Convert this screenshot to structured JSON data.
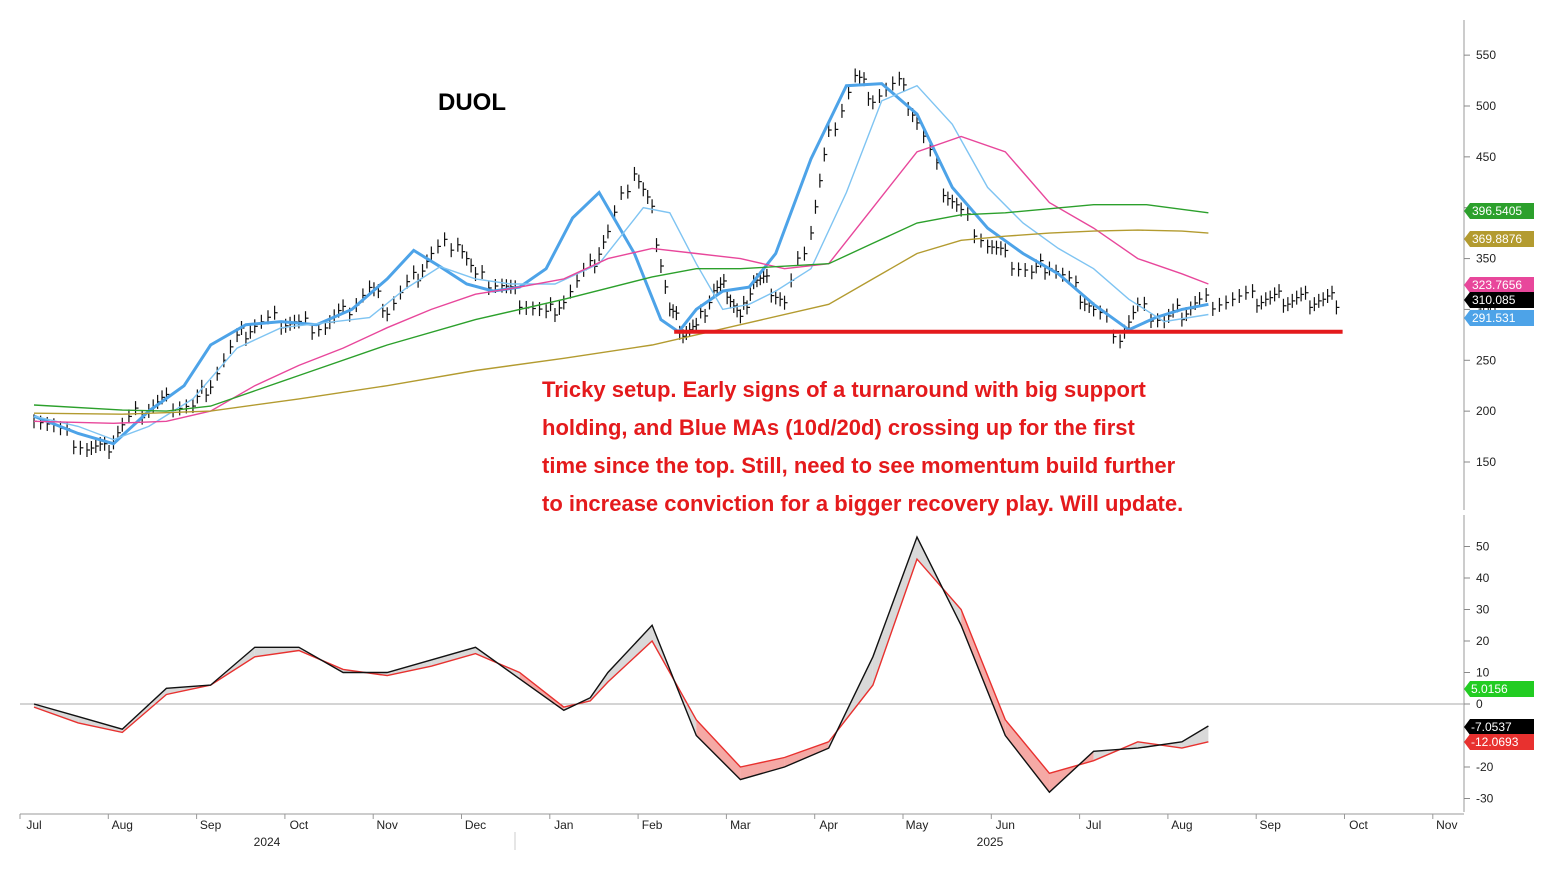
{
  "chart_data": [
    {
      "type": "line",
      "panel": "price",
      "title": "DUOL",
      "y_ticks": [
        150,
        200,
        250,
        300,
        350,
        400,
        450,
        500,
        550
      ],
      "ylim": [
        110,
        565
      ],
      "x_months": [
        "Jul",
        "Aug",
        "Sep",
        "Oct",
        "Nov",
        "Dec",
        "Jan",
        "Feb",
        "Mar",
        "Apr",
        "May",
        "Jun",
        "Jul",
        "Aug",
        "Sep",
        "Oct",
        "Nov"
      ],
      "x_years": [
        "2024",
        "2025"
      ],
      "support_level": 278,
      "support_range": [
        "Feb",
        "Sep"
      ],
      "price_x": [
        0,
        0.3,
        0.6,
        0.8,
        1,
        1.3,
        1.5,
        1.8,
        2,
        2.3,
        2.5,
        2.8,
        3,
        3.3,
        3.5,
        3.8,
        4,
        4.3,
        4.5,
        4.8,
        5,
        5.3,
        5.5,
        5.8,
        6,
        6.3,
        6.5,
        6.8,
        7,
        7.2,
        7.35,
        7.5,
        7.7,
        7.85,
        8,
        8.15,
        8.3,
        8.5,
        8.8,
        9,
        9.3,
        9.5,
        9.8,
        10,
        10.3,
        10.5,
        10.8,
        11,
        11.3,
        11.5,
        11.8,
        12,
        12.3,
        12.5,
        12.8,
        13,
        13.2,
        13.5,
        13.8,
        14,
        14.2,
        14.4,
        14.6,
        14.8
      ],
      "price_y": [
        198,
        180,
        165,
        160,
        185,
        205,
        210,
        205,
        230,
        270,
        285,
        290,
        285,
        285,
        295,
        320,
        300,
        330,
        355,
        370,
        330,
        325,
        310,
        295,
        310,
        340,
        375,
        438,
        395,
        300,
        280,
        280,
        320,
        320,
        290,
        330,
        325,
        305,
        380,
        470,
        530,
        510,
        522,
        485,
        420,
        395,
        365,
        350,
        335,
        345,
        320,
        300,
        275,
        300,
        290,
        298,
        307,
        310,
        310,
        310,
        310,
        310,
        310,
        310
      ],
      "series": [
        {
          "name": "",
          "color": "#4da3e8",
          "x": [
            0,
            0.5,
            0.9,
            1.3,
            1.7,
            2,
            2.4,
            2.8,
            3.2,
            3.6,
            4,
            4.3,
            4.6,
            4.9,
            5.2,
            5.5,
            5.8,
            6.1,
            6.4,
            6.8,
            7.1,
            7.3,
            7.5,
            7.8,
            8.1,
            8.4,
            8.8,
            9.2,
            9.6,
            10,
            10.4,
            10.8,
            11.2,
            11.6,
            12,
            12.4,
            12.7,
            13.0,
            13.3
          ],
          "y": [
            195,
            178,
            168,
            200,
            225,
            265,
            285,
            288,
            285,
            300,
            330,
            358,
            342,
            325,
            318,
            322,
            340,
            390,
            415,
            355,
            290,
            278,
            300,
            318,
            322,
            355,
            448,
            520,
            522,
            492,
            420,
            380,
            355,
            335,
            305,
            280,
            292,
            300,
            305
          ]
        },
        {
          "name": "",
          "color": "#7fc4f2",
          "x": [
            0,
            0.5,
            0.9,
            1.3,
            1.8,
            2.3,
            2.8,
            3.3,
            3.8,
            4.2,
            4.6,
            5.0,
            5.4,
            5.9,
            6.4,
            6.9,
            7.2,
            7.5,
            7.8,
            8.1,
            8.4,
            8.8,
            9.2,
            9.6,
            10,
            10.4,
            10.8,
            11.2,
            11.6,
            12,
            12.4,
            12.8,
            13.3
          ],
          "y": [
            195,
            185,
            172,
            185,
            212,
            262,
            282,
            287,
            292,
            320,
            342,
            330,
            325,
            325,
            345,
            400,
            395,
            345,
            300,
            305,
            318,
            340,
            415,
            505,
            520,
            482,
            420,
            385,
            360,
            340,
            310,
            288,
            295
          ]
        },
        {
          "name": "",
          "color": "#e8479b",
          "x": [
            0,
            0.9,
            1.5,
            2,
            2.5,
            3,
            3.5,
            4,
            4.5,
            5,
            5.5,
            6,
            6.5,
            7,
            7.5,
            8,
            8.5,
            9,
            9.5,
            10,
            10.5,
            11,
            11.5,
            12,
            12.5,
            13,
            13.3
          ],
          "y": [
            190,
            188,
            190,
            200,
            225,
            245,
            262,
            282,
            300,
            315,
            322,
            330,
            350,
            360,
            355,
            350,
            340,
            345,
            400,
            455,
            470,
            455,
            405,
            380,
            350,
            335,
            325
          ]
        },
        {
          "name": "",
          "color": "#2ca02c",
          "x": [
            0,
            1,
            1.5,
            2,
            3,
            4,
            5,
            6,
            7,
            7.5,
            8,
            9,
            9.5,
            10,
            10.5,
            11,
            12,
            12.6,
            13.3
          ],
          "y": [
            206,
            201,
            200,
            205,
            235,
            265,
            290,
            310,
            332,
            340,
            340,
            345,
            365,
            385,
            393,
            395,
            403,
            403,
            395
          ]
        },
        {
          "name": "",
          "color": "#b39b30",
          "x": [
            0,
            1,
            2,
            3,
            4,
            5,
            6,
            7,
            8,
            9,
            9.5,
            10,
            10.5,
            11,
            11.5,
            12,
            12.5,
            13,
            13.3
          ],
          "y": [
            198,
            197,
            200,
            212,
            225,
            240,
            252,
            265,
            285,
            305,
            330,
            355,
            368,
            372,
            375,
            377,
            378,
            377,
            375
          ]
        }
      ],
      "last_values": [
        {
          "label": "396.5405",
          "value": 396.5405,
          "color": "#2ca02c"
        },
        {
          "label": "369.8876",
          "value": 369.8876,
          "color": "#b39b30"
        },
        {
          "label": "323.7656",
          "value": 323.7656,
          "color": "#e8479b"
        },
        {
          "label": "310.085",
          "value": 310.085,
          "color": "#000000"
        },
        {
          "label": "291.531",
          "value": 291.531,
          "color": "#4da3e8"
        }
      ]
    },
    {
      "type": "line",
      "panel": "oscillator",
      "y_ticks": [
        -30,
        -20,
        0,
        10,
        20,
        30,
        40,
        50
      ],
      "ylim": [
        -34,
        55
      ],
      "series": [
        {
          "name": "",
          "color": "#111111",
          "x": [
            0,
            0.5,
            1,
            1.5,
            2,
            2.5,
            3,
            3.5,
            4,
            4.5,
            5,
            5.5,
            6,
            6.3,
            6.5,
            7,
            7.5,
            8,
            8.5,
            9,
            9.5,
            10,
            10.5,
            11,
            11.5,
            12,
            12.5,
            13,
            13.3
          ],
          "y": [
            0,
            -4,
            -8,
            5,
            6,
            18,
            18,
            10,
            10,
            14,
            18,
            8,
            -2,
            2,
            10,
            25,
            -10,
            -24,
            -20,
            -14,
            15,
            53,
            25,
            -10,
            -28,
            -15,
            -14,
            -12,
            -7
          ]
        },
        {
          "name": "",
          "color": "#e8312f",
          "x": [
            0,
            0.5,
            1,
            1.5,
            2,
            2.5,
            3,
            3.5,
            4,
            4.5,
            5,
            5.5,
            6,
            6.3,
            6.5,
            7,
            7.5,
            8,
            8.5,
            9,
            9.5,
            10,
            10.5,
            11,
            11.5,
            12,
            12.5,
            13,
            13.3
          ],
          "y": [
            -1,
            -6,
            -9,
            3,
            6,
            15,
            17,
            11,
            9,
            12,
            16,
            10,
            -1,
            1,
            7,
            20,
            -5,
            -20,
            -17,
            -12,
            6,
            46,
            30,
            -5,
            -22,
            -18,
            -12,
            -14,
            -12
          ]
        }
      ],
      "last_values": [
        {
          "label": "5.0156",
          "value": 5.0156,
          "color": "#22cc22"
        },
        {
          "label": "-7.0537",
          "value": -7.0537,
          "color": "#000000"
        },
        {
          "label": "-12.0693",
          "value": -12.0693,
          "color": "#e8312f"
        }
      ]
    }
  ],
  "annotation": {
    "lines": [
      "Tricky setup. Early signs of a turnaround with big support",
      "holding, and Blue MAs (10d/20d) crossing up for the first",
      "time since the top. Still, need to see momentum build further",
      "to increase conviction for a bigger recovery play. Will update."
    ],
    "color": "#e41a1c"
  }
}
